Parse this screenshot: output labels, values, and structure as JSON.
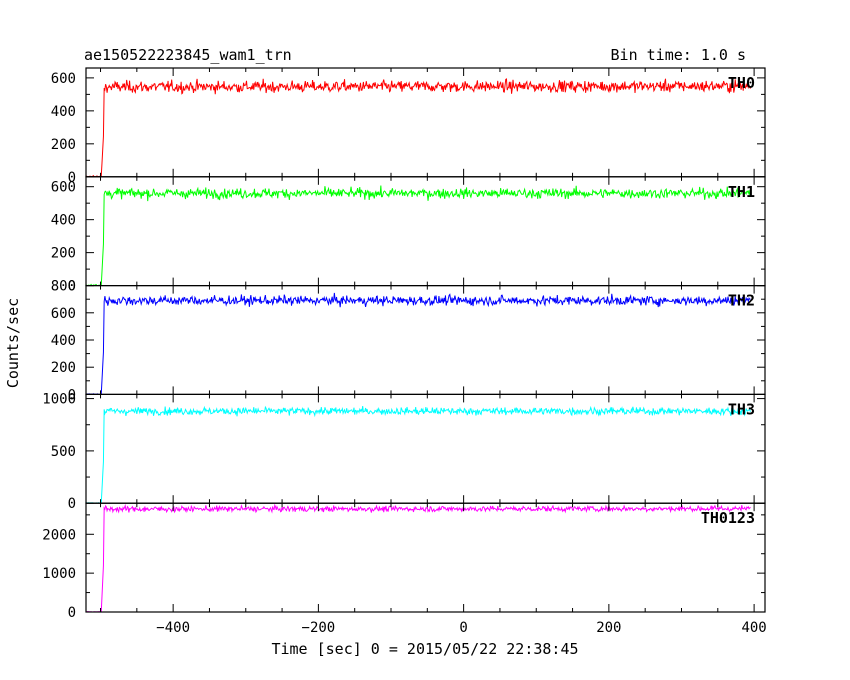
{
  "chart_data": {
    "type": "line",
    "title": "ae150522223845_wam1_trn",
    "bin_label": "Bin time: 1.0 s",
    "xlabel": "Time [sec] 0 = 2015/05/22 22:38:45",
    "ylabel": "Counts/sec",
    "xlim": [
      -520,
      415
    ],
    "x_ticks": [
      -400,
      -200,
      0,
      200,
      400
    ],
    "x_tick_labels": [
      "−400",
      "−200",
      "0",
      "200",
      "400"
    ],
    "onset_time": -495,
    "series": [
      {
        "name": "TH0",
        "color": "#ff0000",
        "ylim": [
          0,
          660
        ],
        "y_ticks": [
          0,
          200,
          400,
          600
        ],
        "background": 0,
        "level": 545,
        "slope": 0.06,
        "noise": 35
      },
      {
        "name": "TH1",
        "color": "#00ff00",
        "ylim": [
          0,
          660
        ],
        "y_ticks": [
          0,
          200,
          400,
          600
        ],
        "background": 0,
        "level": 560,
        "slope": 0.0,
        "noise": 30
      },
      {
        "name": "TH2",
        "color": "#0000ff",
        "ylim": [
          0,
          800
        ],
        "y_ticks": [
          0,
          200,
          400,
          600,
          800
        ],
        "background": 0,
        "level": 690,
        "slope": 0.0,
        "noise": 35
      },
      {
        "name": "TH3",
        "color": "#00ffff",
        "ylim": [
          0,
          1040
        ],
        "y_ticks": [
          0,
          500,
          1000
        ],
        "background": 0,
        "level": 880,
        "slope": 0.0,
        "noise": 35
      },
      {
        "name": "TH0123",
        "color": "#ff00ff",
        "ylim": [
          0,
          2800
        ],
        "y_ticks": [
          0,
          1000,
          2000
        ],
        "background": 0,
        "level": 2650,
        "slope": 0.1,
        "noise": 70
      }
    ]
  }
}
